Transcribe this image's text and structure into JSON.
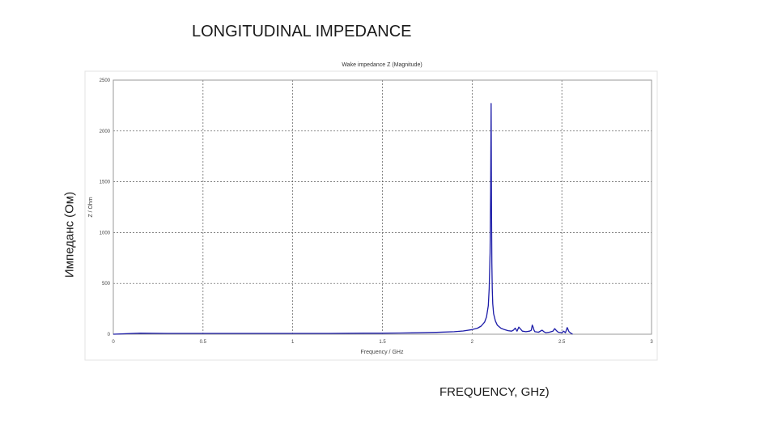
{
  "slide": {
    "title": "LONGITUDINAL IMPEDANCE",
    "y_caption": "Импеданс (Ом)",
    "x_caption": "FREQUENCY, GHz)"
  },
  "chart_data": {
    "type": "line",
    "title": "Wake impedance Z (Magnitude)",
    "xlabel": "Frequency / GHz",
    "ylabel": "Z / Ohm",
    "xlim": [
      0,
      3
    ],
    "ylim": [
      0,
      2500
    ],
    "x_ticks": [
      "0",
      "0.5",
      "1",
      "1.5",
      "2",
      "2.5",
      "3"
    ],
    "y_ticks": [
      "0",
      "500",
      "1000",
      "1500",
      "2000",
      "2500"
    ],
    "grid": true,
    "series": [
      {
        "color": "#1c1ca8",
        "x": [
          0.0,
          0.15,
          0.3,
          0.5,
          0.8,
          1.0,
          1.2,
          1.4,
          1.5,
          1.6,
          1.7,
          1.8,
          1.9,
          1.95,
          2.0,
          2.03,
          2.05,
          2.07,
          2.08,
          2.09,
          2.095,
          2.1,
          2.103,
          2.106,
          2.108,
          2.11,
          2.112,
          2.115,
          2.12,
          2.13,
          2.14,
          2.16,
          2.18,
          2.2,
          2.22,
          2.23,
          2.24,
          2.25,
          2.26,
          2.27,
          2.28,
          2.3,
          2.32,
          2.33,
          2.335,
          2.34,
          2.345,
          2.35,
          2.37,
          2.39,
          2.4,
          2.41,
          2.43,
          2.45,
          2.46,
          2.47,
          2.48,
          2.5,
          2.51,
          2.52,
          2.525,
          2.53,
          2.535,
          2.54,
          2.55,
          2.56
        ],
        "y": [
          0,
          10,
          8,
          8,
          8,
          8,
          8,
          10,
          10,
          12,
          14,
          18,
          25,
          32,
          45,
          60,
          80,
          120,
          170,
          280,
          450,
          800,
          1400,
          2270,
          1200,
          700,
          450,
          300,
          200,
          130,
          90,
          60,
          45,
          35,
          30,
          40,
          60,
          30,
          70,
          50,
          30,
          25,
          30,
          40,
          90,
          70,
          40,
          25,
          20,
          40,
          25,
          15,
          20,
          30,
          55,
          35,
          20,
          15,
          30,
          15,
          40,
          65,
          45,
          25,
          10,
          0
        ]
      }
    ]
  }
}
